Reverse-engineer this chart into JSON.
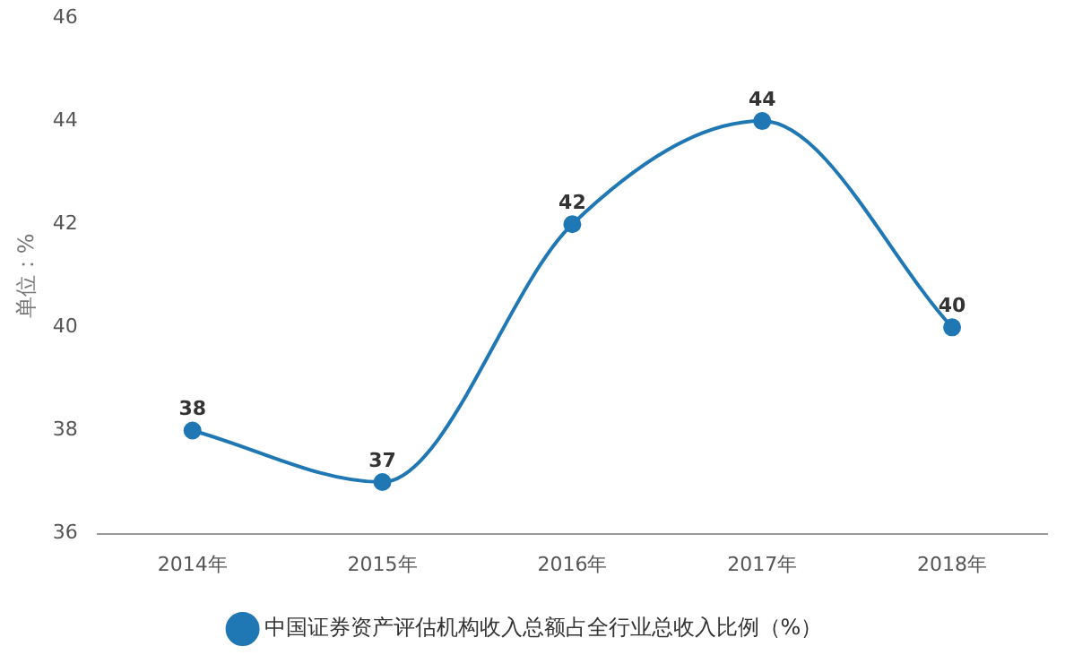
{
  "chart_data": {
    "type": "line",
    "ylabel": "单位：%",
    "categories": [
      "2014年",
      "2015年",
      "2016年",
      "2017年",
      "2018年"
    ],
    "series": [
      {
        "name": "中国证券资产评估机构收入总额占全行业总收入比例（%）",
        "color": "#1f77b4",
        "values": [
          38,
          37,
          42,
          44,
          40
        ]
      }
    ],
    "ylim": [
      36,
      46
    ],
    "yticks": [
      36,
      38,
      40,
      42,
      44,
      46
    ],
    "grid": false,
    "legend": "bottom",
    "marker": "circle",
    "line_style": "solid",
    "data_labels": true
  }
}
